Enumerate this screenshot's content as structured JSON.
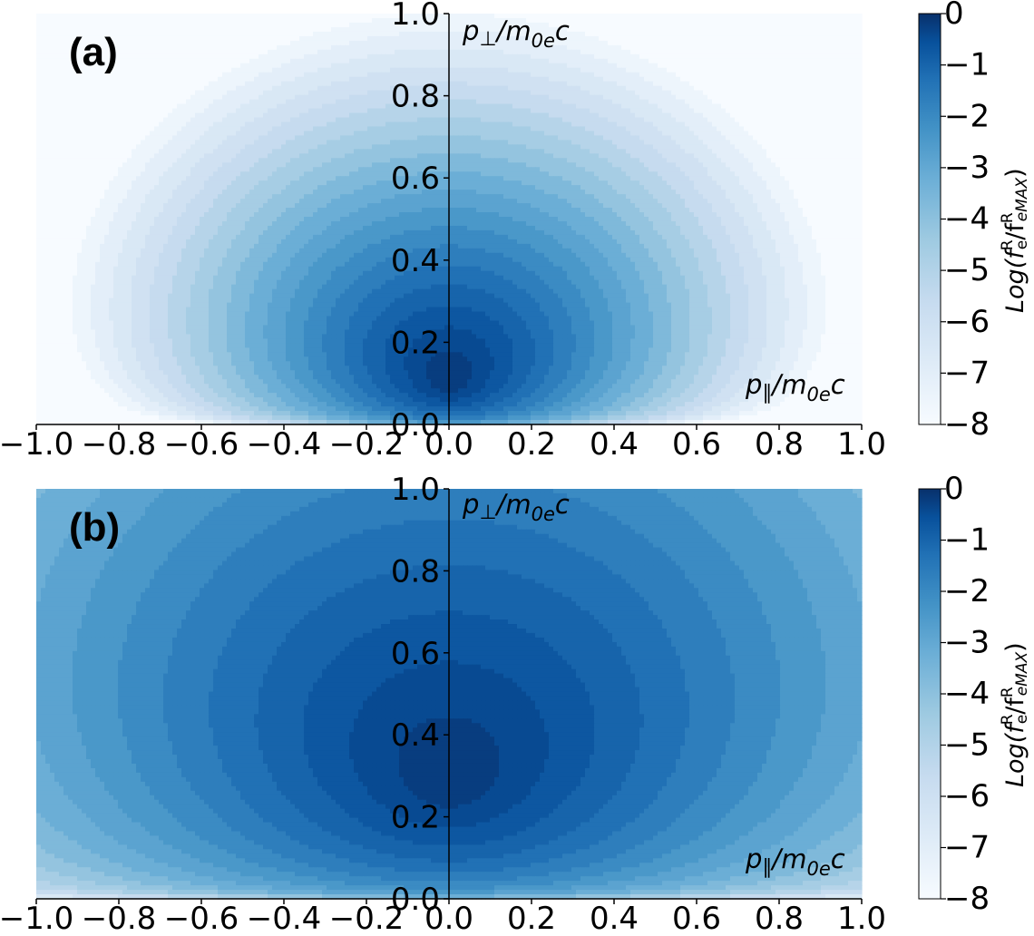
{
  "chart_data": [
    {
      "type": "contour",
      "panel_label": "(a)",
      "x": {
        "label_base": "p",
        "label_sub": "∥",
        "label_rest": "/m",
        "label_sub2": "0e",
        "label_tail": "c",
        "range": [
          -1.0,
          1.0
        ],
        "ticks": [
          "−1.0",
          "−0.8",
          "−0.6",
          "−0.4",
          "−0.2",
          "0.0",
          "0.2",
          "0.4",
          "0.6",
          "0.8",
          "1.0"
        ]
      },
      "y": {
        "label_base": "p",
        "label_sub": "⊥",
        "label_rest": "/m",
        "label_sub2": "0e",
        "label_tail": "c",
        "range": [
          0.0,
          1.0
        ],
        "ticks": [
          "0.0",
          "0.2",
          "0.4",
          "0.6",
          "0.8",
          "1.0"
        ]
      },
      "peak_position": [
        0.0,
        0.1
      ],
      "width_parameter": 0.18,
      "colorbar": {
        "label": "Log(f",
        "label_parts": [
          "Log(f",
          "R",
          "e",
          "/f",
          "R",
          "eMAX",
          ")"
        ],
        "range": [
          -8,
          0
        ],
        "ticks": [
          "0",
          "−1",
          "−2",
          "−3",
          "−4",
          "−5",
          "−6",
          "−7",
          "−8"
        ],
        "levels": 20
      }
    },
    {
      "type": "contour",
      "panel_label": "(b)",
      "x": {
        "label_base": "p",
        "label_sub": "∥",
        "label_rest": "/m",
        "label_sub2": "0e",
        "label_tail": "c",
        "range": [
          -1.0,
          1.0
        ],
        "ticks": [
          "−1.0",
          "−0.8",
          "−0.6",
          "−0.4",
          "−0.2",
          "0.0",
          "0.2",
          "0.4",
          "0.6",
          "0.8",
          "1.0"
        ]
      },
      "y": {
        "label_base": "p",
        "label_sub": "⊥",
        "label_rest": "/m",
        "label_sub2": "0e",
        "label_tail": "c",
        "range": [
          0.0,
          1.0
        ],
        "ticks": [
          "0.0",
          "0.2",
          "0.4",
          "0.6",
          "0.8",
          "1.0"
        ]
      },
      "peak_position": [
        0.0,
        0.28
      ],
      "width_parameter": 0.42,
      "colorbar": {
        "label": "Log(f",
        "label_parts": [
          "Log(f",
          "R",
          "e",
          "/f",
          "R",
          "eMAX",
          ")"
        ],
        "range": [
          -8,
          0
        ],
        "ticks": [
          "0",
          "−1",
          "−2",
          "−3",
          "−4",
          "−5",
          "−6",
          "−7",
          "−8"
        ],
        "levels": 20
      }
    }
  ],
  "colors": {
    "dark": "#08306b",
    "mid": "#2171b5",
    "light": "#c6dbef",
    "lightest": "#f7fbff"
  }
}
